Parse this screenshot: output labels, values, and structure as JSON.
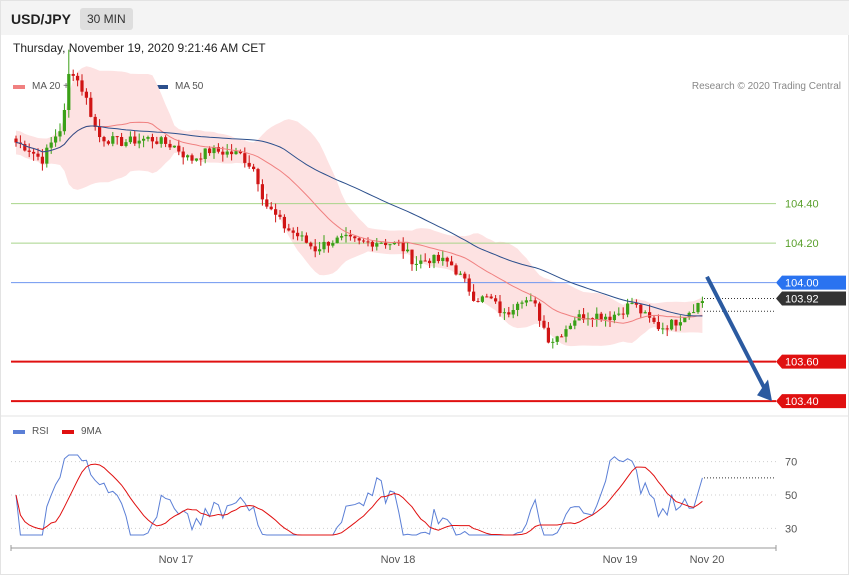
{
  "header": {
    "symbol": "USD/JPY",
    "timeframe": "30 MIN"
  },
  "datetime": "Thursday, November 19, 2020 9:21:46 AM CET",
  "legend": {
    "ma20_label": "MA 20 + Bollinger Bands",
    "ma20_color": "#f08080",
    "ma50_label": "MA 50",
    "ma50_color": "#2b4f8c"
  },
  "credit": "Research © 2020 Trading Central",
  "rsi_legend": {
    "rsi_label": "RSI",
    "rsi_color": "#5b7fd6",
    "ma_label": "9MA",
    "ma_color": "#e01010"
  },
  "chart_data": {
    "type": "candlestick",
    "y_range": [
      103.33,
      104.95
    ],
    "levels": [
      {
        "value": 104.4,
        "label": "104.40",
        "kind": "resistance"
      },
      {
        "value": 104.2,
        "label": "104.20",
        "kind": "resistance"
      },
      {
        "value": 104.0,
        "label": "104.00",
        "kind": "pivot"
      },
      {
        "value": 103.92,
        "label": "103.92",
        "kind": "last-price"
      },
      {
        "value": 103.6,
        "label": "103.60",
        "kind": "support"
      },
      {
        "value": 103.4,
        "label": "103.40",
        "kind": "support"
      }
    ],
    "x_labels": [
      "Nov 17",
      "Nov 18",
      "Nov 19",
      "Nov 20"
    ],
    "rsi": {
      "y_range": [
        20,
        80
      ],
      "ticks": [
        70,
        50,
        30
      ]
    }
  }
}
